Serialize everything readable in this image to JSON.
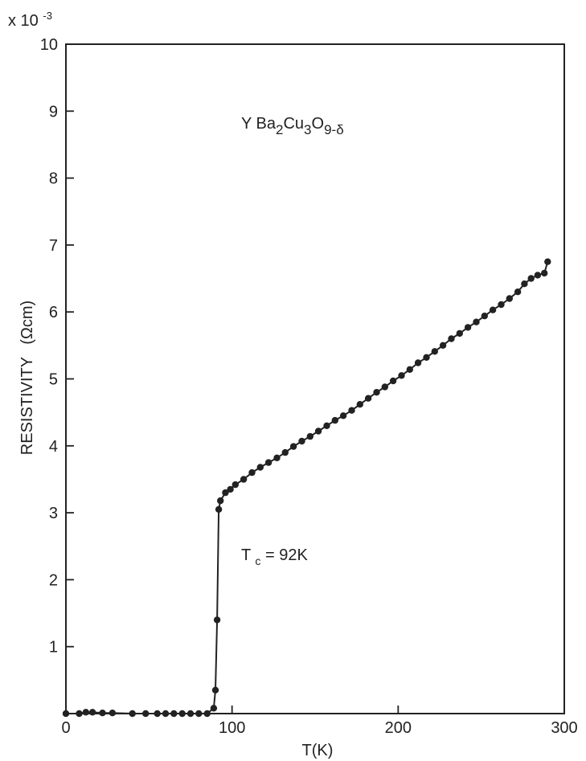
{
  "chart_data": {
    "type": "scatter",
    "connected": true,
    "title": "",
    "xlabel": "T(K)",
    "ylabel": "RESISTIVITY",
    "ylabel_unit": "(Ωcm)",
    "y_multiplier": "x 10",
    "y_multiplier_exponent": "-3",
    "xlim": [
      0,
      300
    ],
    "ylim": [
      0,
      10
    ],
    "x_ticks": [
      "0",
      "100",
      "200",
      "300"
    ],
    "y_ticks": [
      "1",
      "2",
      "3",
      "4",
      "5",
      "6",
      "7",
      "8",
      "9",
      "10"
    ],
    "grid": false,
    "formula": {
      "parts": [
        {
          "text": "Y Ba",
          "style": "normal"
        },
        {
          "text": "2",
          "style": "sub"
        },
        {
          "text": "Cu",
          "style": "normal"
        },
        {
          "text": "3",
          "style": "sub"
        },
        {
          "text": "O",
          "style": "normal"
        },
        {
          "text": "9-δ",
          "style": "sub"
        }
      ]
    },
    "annotation": {
      "base": "T",
      "subscript": "c",
      "rest": " = 92K"
    },
    "series": [
      {
        "color": "#222222",
        "points": [
          [
            0,
            0.0
          ],
          [
            8,
            0.0
          ],
          [
            12,
            0.02
          ],
          [
            16,
            0.02
          ],
          [
            22,
            0.01
          ],
          [
            28,
            0.01
          ],
          [
            40,
            0.0
          ],
          [
            48,
            0.0
          ],
          [
            55,
            0.0
          ],
          [
            60,
            0.0
          ],
          [
            65,
            0.0
          ],
          [
            70,
            0.0
          ],
          [
            75,
            0.0
          ],
          [
            80,
            0.0
          ],
          [
            85,
            0.0
          ],
          [
            89,
            0.08
          ],
          [
            90,
            0.35
          ],
          [
            91,
            1.4
          ],
          [
            92,
            3.05
          ],
          [
            93,
            3.18
          ],
          [
            96,
            3.3
          ],
          [
            99,
            3.35
          ],
          [
            102,
            3.42
          ],
          [
            107,
            3.5
          ],
          [
            112,
            3.6
          ],
          [
            117,
            3.68
          ],
          [
            122,
            3.75
          ],
          [
            127,
            3.82
          ],
          [
            132,
            3.9
          ],
          [
            137,
            3.99
          ],
          [
            142,
            4.07
          ],
          [
            147,
            4.14
          ],
          [
            152,
            4.22
          ],
          [
            157,
            4.3
          ],
          [
            162,
            4.38
          ],
          [
            167,
            4.45
          ],
          [
            172,
            4.53
          ],
          [
            177,
            4.62
          ],
          [
            182,
            4.71
          ],
          [
            187,
            4.8
          ],
          [
            192,
            4.88
          ],
          [
            197,
            4.97
          ],
          [
            202,
            5.05
          ],
          [
            207,
            5.14
          ],
          [
            212,
            5.24
          ],
          [
            217,
            5.32
          ],
          [
            222,
            5.41
          ],
          [
            227,
            5.5
          ],
          [
            232,
            5.6
          ],
          [
            237,
            5.68
          ],
          [
            242,
            5.77
          ],
          [
            247,
            5.85
          ],
          [
            252,
            5.94
          ],
          [
            257,
            6.03
          ],
          [
            262,
            6.11
          ],
          [
            267,
            6.2
          ],
          [
            272,
            6.3
          ],
          [
            276,
            6.42
          ],
          [
            280,
            6.5
          ],
          [
            284,
            6.55
          ],
          [
            288,
            6.58
          ],
          [
            290,
            6.75
          ]
        ]
      }
    ]
  }
}
